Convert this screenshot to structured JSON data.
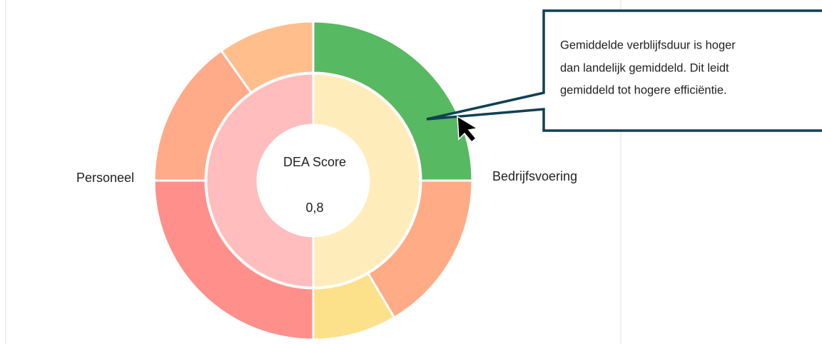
{
  "chart_data": {
    "type": "sunburst",
    "center_title": "DEA Score",
    "center_value": "0,8",
    "groups": [
      {
        "name": "Bedrijfsvoering",
        "value": 50,
        "color": "#feecba",
        "children": [
          {
            "name": null,
            "value": 25,
            "color": "#57b961"
          },
          {
            "name": null,
            "value": 16.5,
            "color": "#ffab86"
          },
          {
            "name": null,
            "value": 8.5,
            "color": "#fde08a"
          }
        ]
      },
      {
        "name": "Personeel",
        "value": 50,
        "color": "#ffbdbd",
        "children": [
          {
            "name": null,
            "value": 25,
            "color": "#ff8f8b"
          },
          {
            "name": null,
            "value": 15.2,
            "color": "#ffaa88"
          },
          {
            "name": null,
            "value": 9.8,
            "color": "#ffbe8c"
          }
        ]
      }
    ],
    "tooltip": [
      "Gemiddelde verblijfsduur is hoger",
      "dan landelijk gemiddeld. Dit leidt",
      "gemiddeld tot hogere efficiëntie."
    ]
  }
}
